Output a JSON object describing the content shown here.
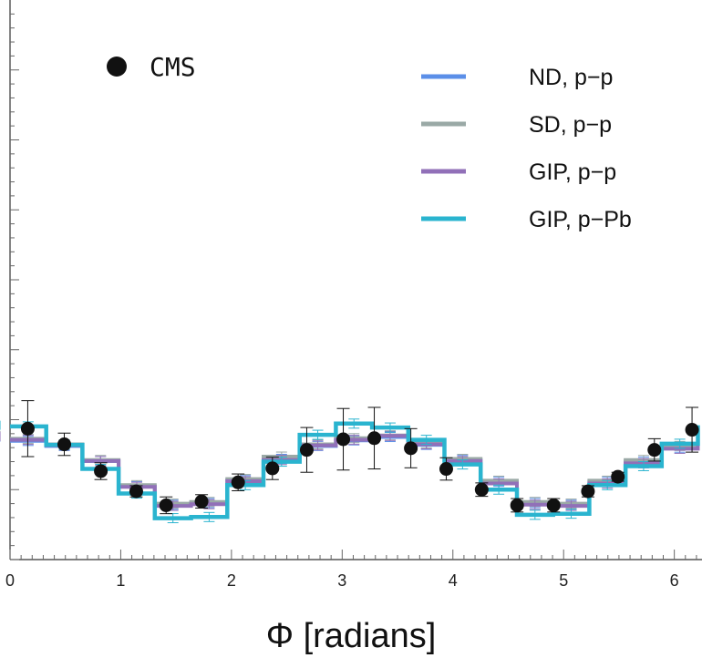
{
  "chart_data": {
    "type": "line",
    "title": "",
    "xlabel": "Φ [radians]",
    "ylabel": "",
    "xlim": [
      0,
      6.25
    ],
    "ylim": [
      0,
      1
    ],
    "grid": false,
    "legend_position": "top-right",
    "x_ticks": [
      0,
      1,
      2,
      3,
      4,
      5,
      6
    ],
    "bin_edges": [
      0,
      0.327,
      0.654,
      0.981,
      1.308,
      1.635,
      1.962,
      2.289,
      2.616,
      2.943,
      3.27,
      3.597,
      3.924,
      4.251,
      4.578,
      4.905,
      5.232,
      5.559,
      5.886,
      6.213
    ],
    "data_marker": {
      "name": "CMS",
      "color": "#111111"
    },
    "data_points": [
      {
        "x": 0.16,
        "y": 0.234,
        "err": 0.05
      },
      {
        "x": 0.49,
        "y": 0.206,
        "err": 0.02
      },
      {
        "x": 0.82,
        "y": 0.158,
        "err": 0.015
      },
      {
        "x": 1.14,
        "y": 0.122,
        "err": 0.01
      },
      {
        "x": 1.41,
        "y": 0.097,
        "err": 0.015
      },
      {
        "x": 1.73,
        "y": 0.104,
        "err": 0.012
      },
      {
        "x": 2.06,
        "y": 0.138,
        "err": 0.015
      },
      {
        "x": 2.37,
        "y": 0.163,
        "err": 0.02
      },
      {
        "x": 2.68,
        "y": 0.196,
        "err": 0.04
      },
      {
        "x": 3.01,
        "y": 0.215,
        "err": 0.055
      },
      {
        "x": 3.29,
        "y": 0.217,
        "err": 0.055
      },
      {
        "x": 3.62,
        "y": 0.199,
        "err": 0.035
      },
      {
        "x": 3.94,
        "y": 0.162,
        "err": 0.02
      },
      {
        "x": 4.26,
        "y": 0.125,
        "err": 0.012
      },
      {
        "x": 4.58,
        "y": 0.097,
        "err": 0.012
      },
      {
        "x": 4.91,
        "y": 0.097,
        "err": 0.012
      },
      {
        "x": 5.22,
        "y": 0.122,
        "err": 0.01
      },
      {
        "x": 5.49,
        "y": 0.148,
        "err": 0.008
      },
      {
        "x": 5.82,
        "y": 0.196,
        "err": 0.02
      },
      {
        "x": 6.16,
        "y": 0.232,
        "err": 0.04
      }
    ],
    "series": [
      {
        "name": "ND, p−p",
        "color": "#5b8fe8",
        "values": [
          0.212,
          0.203,
          0.176,
          0.131,
          0.098,
          0.101,
          0.142,
          0.18,
          0.203,
          0.213,
          0.219,
          0.205,
          0.178,
          0.139,
          0.101,
          0.098,
          0.139,
          0.175,
          0.2,
          0.219
        ]
      },
      {
        "name": "SD, p−p",
        "color": "#9aa9a6",
        "values": [
          0.216,
          0.206,
          0.178,
          0.133,
          0.1,
          0.103,
          0.144,
          0.184,
          0.206,
          0.217,
          0.222,
          0.208,
          0.18,
          0.141,
          0.103,
          0.1,
          0.141,
          0.178,
          0.203,
          0.222
        ]
      },
      {
        "name": "GIP, p−p",
        "color": "#9170b8",
        "values": [
          0.214,
          0.204,
          0.176,
          0.13,
          0.096,
          0.099,
          0.14,
          0.178,
          0.204,
          0.214,
          0.221,
          0.206,
          0.176,
          0.136,
          0.098,
          0.096,
          0.136,
          0.172,
          0.198,
          0.22
        ]
      },
      {
        "name": "GIP, p−Pb",
        "color": "#2ab4cf",
        "values": [
          0.238,
          0.205,
          0.162,
          0.118,
          0.074,
          0.076,
          0.133,
          0.175,
          0.223,
          0.243,
          0.236,
          0.214,
          0.17,
          0.125,
          0.08,
          0.082,
          0.133,
          0.167,
          0.207,
          0.24
        ]
      }
    ]
  }
}
